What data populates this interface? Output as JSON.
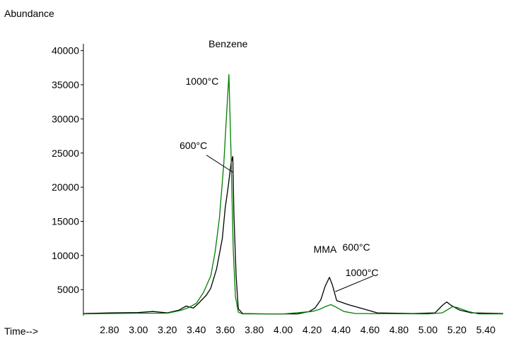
{
  "chart_data": {
    "type": "line",
    "title": "",
    "ylabel": "Abundance",
    "xlabel": "Time-->",
    "xlim": [
      2.62,
      5.52
    ],
    "ylim": [
      1200,
      41000
    ],
    "x_ticks": [
      "2.80",
      "3.00",
      "3.20",
      "3.40",
      "3.60",
      "3.80",
      "4.00",
      "4.20",
      "4.40",
      "4.60",
      "4.80",
      "5.00",
      "5.20",
      "5.40"
    ],
    "x_tick_values": [
      2.8,
      3.0,
      3.2,
      3.4,
      3.6,
      3.8,
      4.0,
      4.2,
      4.4,
      4.6,
      4.8,
      5.0,
      5.2,
      5.4
    ],
    "y_ticks": [
      "5000",
      "10000",
      "15000",
      "20000",
      "25000",
      "30000",
      "35000",
      "40000"
    ],
    "y_tick_values": [
      5000,
      10000,
      15000,
      20000,
      25000,
      30000,
      35000,
      40000
    ],
    "grid": false,
    "series": [
      {
        "name": "600°C",
        "color": "#000000",
        "points": [
          [
            2.62,
            1500
          ],
          [
            2.8,
            1600
          ],
          [
            3.0,
            1650
          ],
          [
            3.1,
            1800
          ],
          [
            3.2,
            1600
          ],
          [
            3.28,
            2000
          ],
          [
            3.33,
            2600
          ],
          [
            3.38,
            2300
          ],
          [
            3.42,
            3100
          ],
          [
            3.47,
            4200
          ],
          [
            3.5,
            5200
          ],
          [
            3.54,
            8000
          ],
          [
            3.58,
            12500
          ],
          [
            3.6,
            17000
          ],
          [
            3.62,
            20000
          ],
          [
            3.64,
            23500
          ],
          [
            3.652,
            24500
          ],
          [
            3.66,
            16000
          ],
          [
            3.675,
            7000
          ],
          [
            3.69,
            2200
          ],
          [
            3.72,
            1500
          ],
          [
            3.9,
            1450
          ],
          [
            4.1,
            1450
          ],
          [
            4.18,
            1800
          ],
          [
            4.22,
            2300
          ],
          [
            4.26,
            3500
          ],
          [
            4.29,
            5500
          ],
          [
            4.32,
            6800
          ],
          [
            4.34,
            5700
          ],
          [
            4.37,
            3400
          ],
          [
            4.45,
            2800
          ],
          [
            4.55,
            2200
          ],
          [
            4.65,
            1600
          ],
          [
            4.9,
            1500
          ],
          [
            5.05,
            1600
          ],
          [
            5.1,
            2700
          ],
          [
            5.13,
            3200
          ],
          [
            5.16,
            2700
          ],
          [
            5.22,
            2000
          ],
          [
            5.3,
            1600
          ],
          [
            5.52,
            1500
          ]
        ]
      },
      {
        "name": "1000°C",
        "color": "#008000",
        "points": [
          [
            2.62,
            1450
          ],
          [
            2.8,
            1500
          ],
          [
            3.0,
            1550
          ],
          [
            3.2,
            1550
          ],
          [
            3.3,
            2000
          ],
          [
            3.35,
            2400
          ],
          [
            3.4,
            3000
          ],
          [
            3.45,
            4600
          ],
          [
            3.5,
            7000
          ],
          [
            3.53,
            10500
          ],
          [
            3.56,
            15500
          ],
          [
            3.59,
            23500
          ],
          [
            3.61,
            31000
          ],
          [
            3.625,
            36500
          ],
          [
            3.64,
            25000
          ],
          [
            3.655,
            11000
          ],
          [
            3.67,
            4000
          ],
          [
            3.69,
            1700
          ],
          [
            3.72,
            1450
          ],
          [
            4.0,
            1450
          ],
          [
            4.2,
            1800
          ],
          [
            4.25,
            2100
          ],
          [
            4.3,
            2600
          ],
          [
            4.33,
            2800
          ],
          [
            4.36,
            2500
          ],
          [
            4.42,
            1800
          ],
          [
            4.5,
            1500
          ],
          [
            5.0,
            1450
          ],
          [
            5.1,
            1600
          ],
          [
            5.17,
            2500
          ],
          [
            5.2,
            2400
          ],
          [
            5.28,
            1800
          ],
          [
            5.35,
            1450
          ],
          [
            5.52,
            1450
          ]
        ]
      }
    ],
    "annotations": [
      {
        "text": "Benzene",
        "x": 3.62,
        "y": 40500
      },
      {
        "text": "1000°C",
        "x": 3.44,
        "y": 35000
      },
      {
        "text": "600°C",
        "x": 3.38,
        "y": 25600
      },
      {
        "text": "MMA",
        "x": 4.21,
        "y": 10400
      },
      {
        "text": "600°C",
        "x": 4.41,
        "y": 10700
      },
      {
        "text": "1000°C",
        "x": 4.43,
        "y": 7000
      }
    ]
  }
}
